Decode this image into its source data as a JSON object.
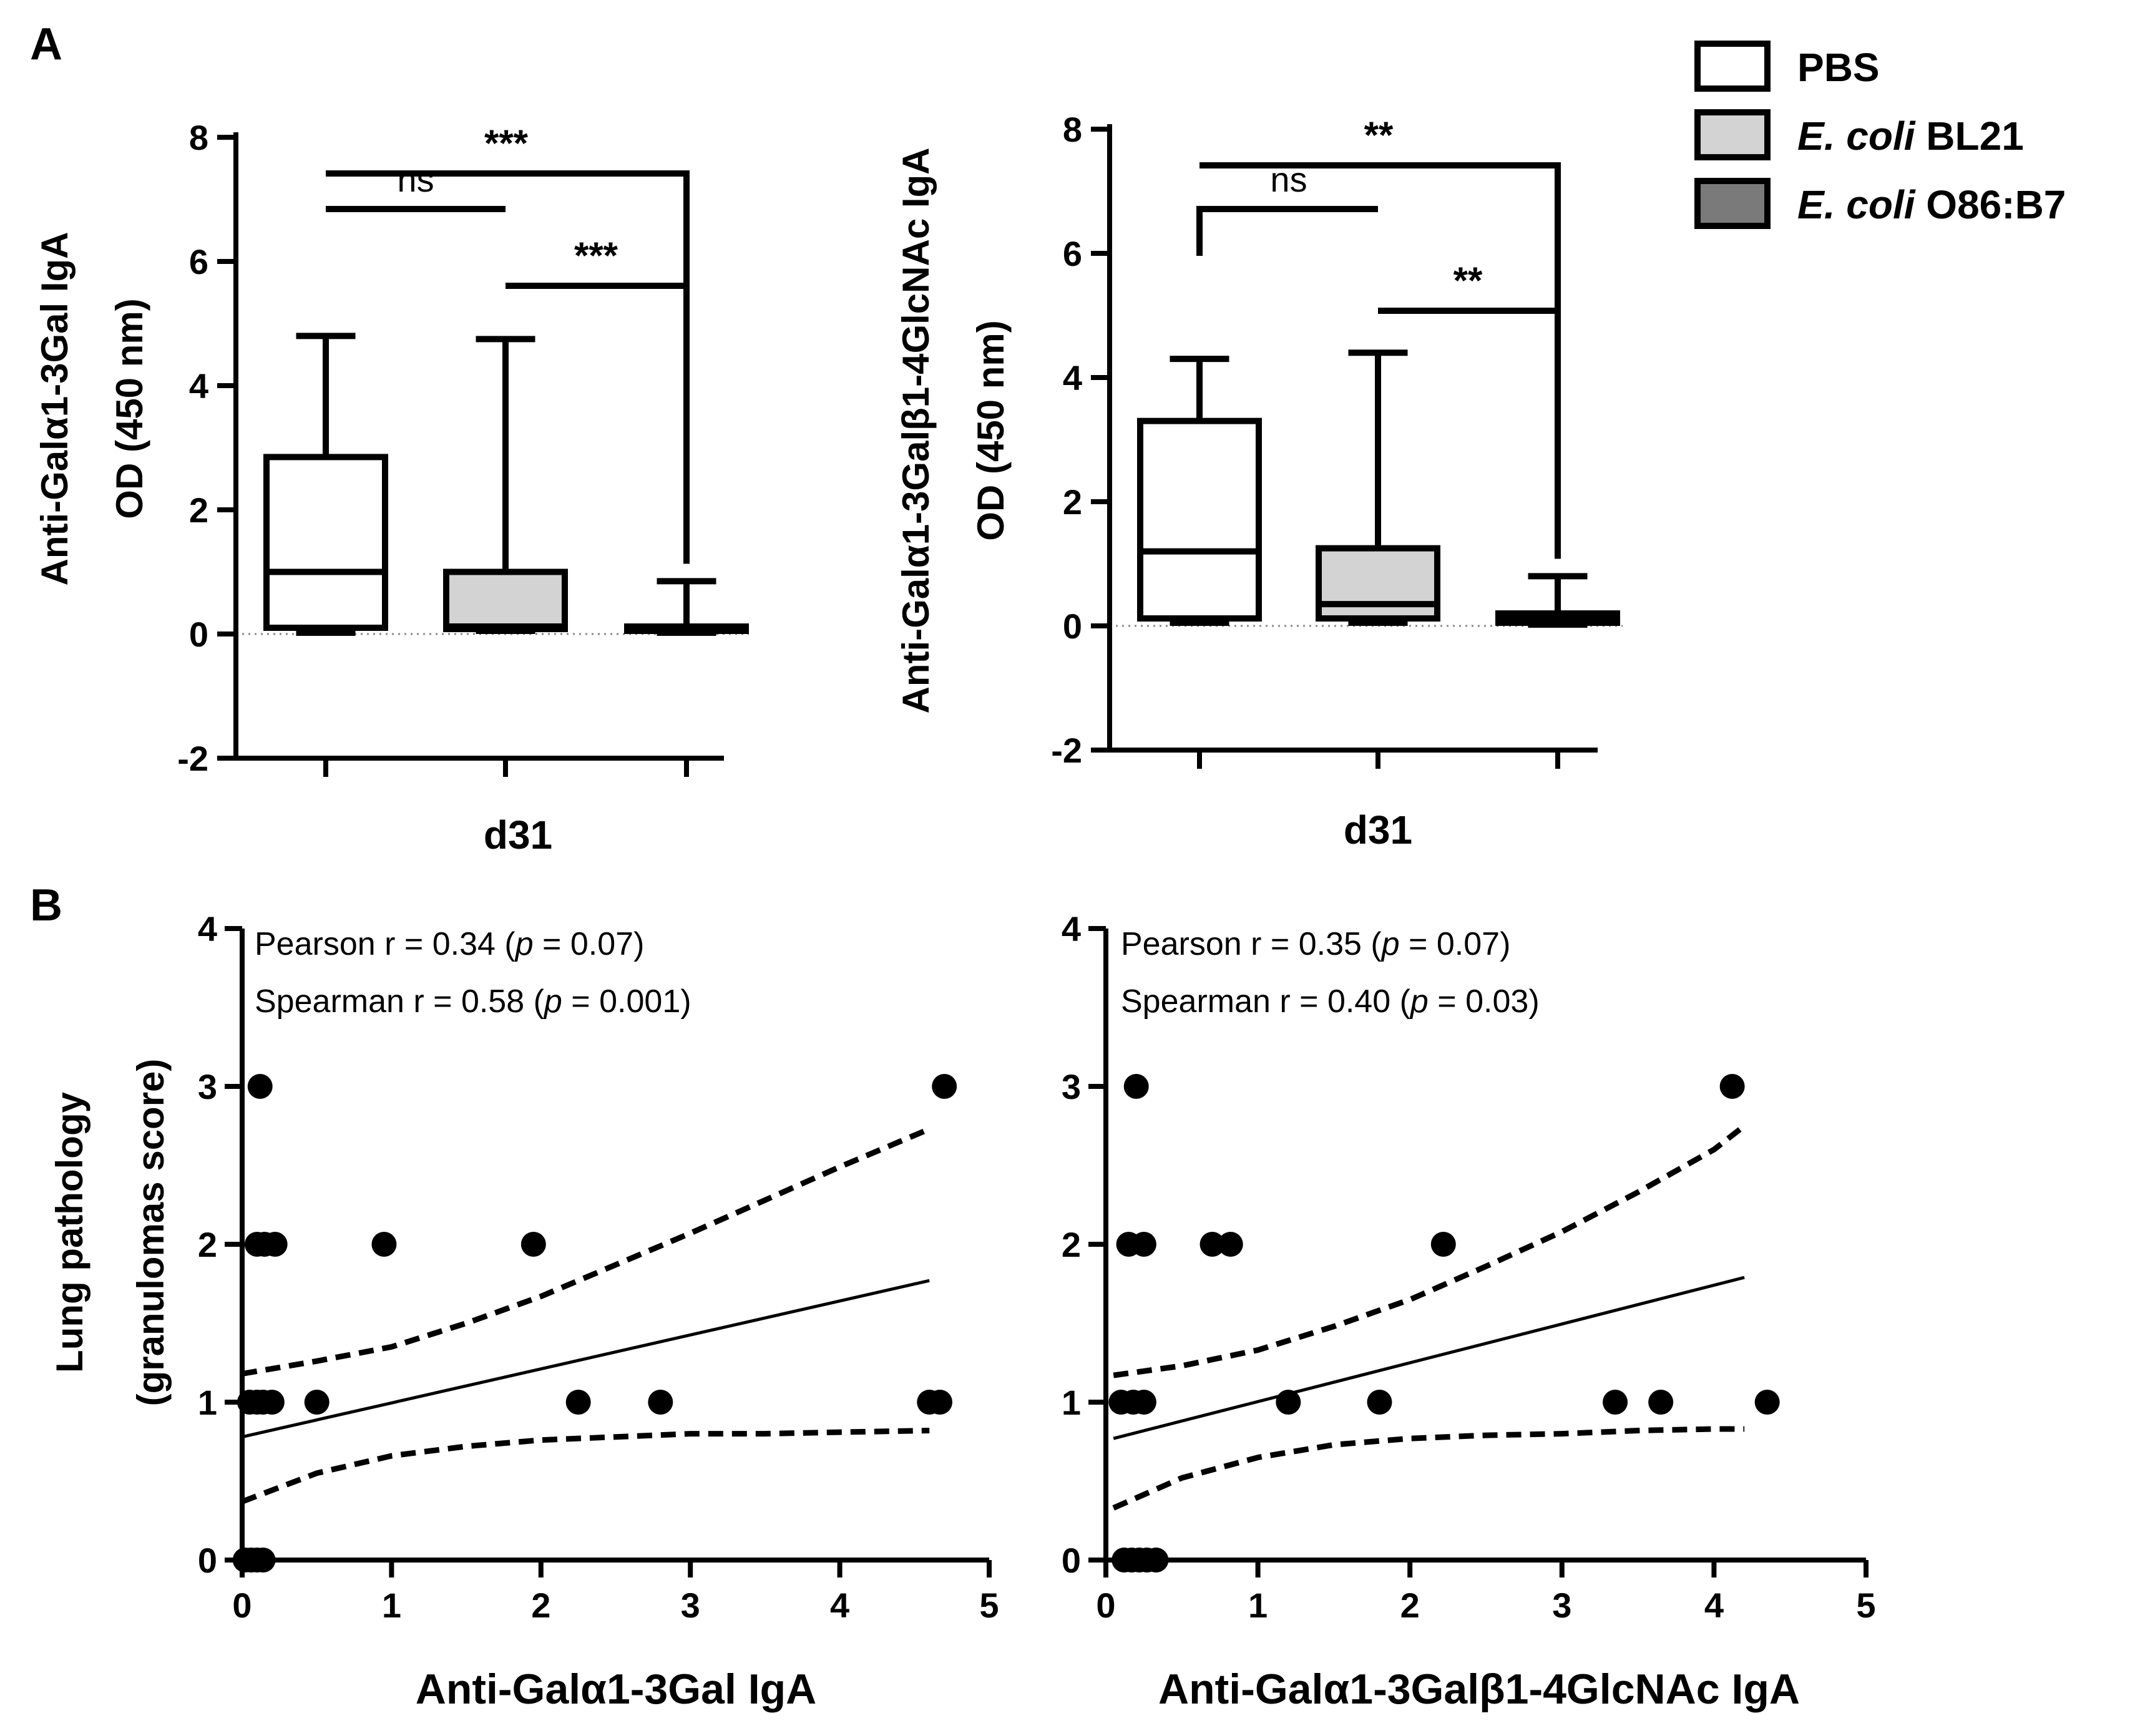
{
  "panel_labels": {
    "a": "A",
    "b": "B"
  },
  "legend": [
    {
      "label": "PBS",
      "label_italic": "",
      "label_rest": "",
      "color": "#ffffff"
    },
    {
      "label": "",
      "label_italic": "E. coli",
      "label_rest": " BL21",
      "color": "#d3d3d3"
    },
    {
      "label": "",
      "label_italic": "E. coli",
      "label_rest": " O86:B7",
      "color": "#7a7a7a"
    }
  ],
  "chart_data": [
    {
      "id": "A1",
      "type": "box",
      "title": "",
      "ylabel_line1": "Anti-Galα1-3Gal IgA",
      "ylabel_line2": "OD (450 nm)",
      "xlabel": "d31",
      "ylim": [
        -2,
        8
      ],
      "yticks": [
        "-2",
        "0",
        "2",
        "4",
        "6",
        "8"
      ],
      "groups": [
        {
          "name": "PBS",
          "color": "#ffffff",
          "min": 0.02,
          "q1": 0.1,
          "median": 1.0,
          "q3": 2.85,
          "max": 4.8
        },
        {
          "name": "E. coli BL21",
          "color": "#d3d3d3",
          "min": 0.05,
          "q1": 0.08,
          "median": 0.12,
          "q3": 1.0,
          "max": 4.75
        },
        {
          "name": "E. coli O86:B7",
          "color": "#7a7a7a",
          "min": 0.02,
          "q1": 0.05,
          "median": 0.08,
          "q3": 0.12,
          "max": 0.85
        }
      ],
      "comparisons": [
        {
          "from": 0,
          "to": 1,
          "label": "ns"
        },
        {
          "from": 1,
          "to": 2,
          "label": "***"
        },
        {
          "from": 0,
          "to": 2,
          "label": "***"
        }
      ]
    },
    {
      "id": "A2",
      "type": "box",
      "title": "",
      "ylabel_line1": "Anti-Galα1-3Galβ1-4GlcNAc IgA",
      "ylabel_line2": "OD (450 nm)",
      "xlabel": "d31",
      "ylim": [
        -2,
        8
      ],
      "yticks": [
        "-2",
        "0",
        "2",
        "4",
        "6",
        "8"
      ],
      "groups": [
        {
          "name": "PBS",
          "color": "#ffffff",
          "min": 0.05,
          "q1": 0.12,
          "median": 1.2,
          "q3": 3.3,
          "max": 4.3
        },
        {
          "name": "E. coli BL21",
          "color": "#d3d3d3",
          "min": 0.05,
          "q1": 0.12,
          "median": 0.35,
          "q3": 1.25,
          "max": 4.4
        },
        {
          "name": "E. coli O86:B7",
          "color": "#7a7a7a",
          "min": 0.02,
          "q1": 0.05,
          "median": 0.1,
          "q3": 0.2,
          "max": 0.8
        }
      ],
      "comparisons": [
        {
          "from": 0,
          "to": 1,
          "label": "ns"
        },
        {
          "from": 1,
          "to": 2,
          "label": "**"
        },
        {
          "from": 0,
          "to": 2,
          "label": "**"
        }
      ]
    },
    {
      "id": "B1",
      "type": "scatter",
      "title": "",
      "ylabel_line1": "Lung pathology",
      "ylabel_line2": "(granulomas score)",
      "xlabel": "Anti-Galα1-3Gal IgA",
      "xlim": [
        0,
        5
      ],
      "ylim": [
        0,
        4
      ],
      "xticks": [
        "0",
        "1",
        "2",
        "3",
        "4",
        "5"
      ],
      "yticks": [
        "0",
        "1",
        "2",
        "3",
        "4"
      ],
      "stats": {
        "pearson_prefix": "Pearson r = 0.34 (",
        "pearson_p": "p",
        "pearson_suffix": " = 0.07)",
        "spearman_prefix": "Spearman r = 0.58 (",
        "spearman_p": "p",
        "spearman_suffix": " = 0.001)"
      },
      "points": [
        [
          0.02,
          0
        ],
        [
          0.06,
          0
        ],
        [
          0.1,
          0
        ],
        [
          0.14,
          0
        ],
        [
          0.05,
          1
        ],
        [
          0.1,
          1
        ],
        [
          0.14,
          1
        ],
        [
          0.2,
          1
        ],
        [
          0.5,
          1
        ],
        [
          2.25,
          1
        ],
        [
          2.8,
          1
        ],
        [
          4.6,
          1
        ],
        [
          4.67,
          1
        ],
        [
          0.1,
          2
        ],
        [
          0.15,
          2
        ],
        [
          0.22,
          2
        ],
        [
          0.95,
          2
        ],
        [
          1.95,
          2
        ],
        [
          0.12,
          3
        ],
        [
          4.7,
          3
        ]
      ],
      "regression": {
        "x0": 0,
        "y0": 0.78,
        "x1": 4.6,
        "y1": 1.77
      },
      "ci_upper": [
        [
          0,
          1.18
        ],
        [
          0.5,
          1.26
        ],
        [
          1,
          1.35
        ],
        [
          1.5,
          1.5
        ],
        [
          2,
          1.67
        ],
        [
          2.5,
          1.87
        ],
        [
          3,
          2.07
        ],
        [
          3.5,
          2.28
        ],
        [
          4,
          2.49
        ],
        [
          4.6,
          2.73
        ]
      ],
      "ci_lower": [
        [
          0,
          0.37
        ],
        [
          0.5,
          0.55
        ],
        [
          1,
          0.66
        ],
        [
          1.5,
          0.72
        ],
        [
          2,
          0.76
        ],
        [
          2.5,
          0.78
        ],
        [
          3,
          0.8
        ],
        [
          3.5,
          0.8
        ],
        [
          4,
          0.81
        ],
        [
          4.6,
          0.82
        ]
      ]
    },
    {
      "id": "B2",
      "type": "scatter",
      "title": "",
      "ylabel_line1": "",
      "ylabel_line2": "",
      "xlabel": "Anti-Galα1-3Galβ1-4GlcNAc IgA",
      "xlim": [
        0,
        5
      ],
      "ylim": [
        0,
        4
      ],
      "xticks": [
        "0",
        "1",
        "2",
        "3",
        "4",
        "5"
      ],
      "yticks": [
        "0",
        "1",
        "2",
        "3",
        "4"
      ],
      "stats": {
        "pearson_prefix": "Pearson r = 0.35 (",
        "pearson_p": "p",
        "pearson_suffix": " = 0.07)",
        "spearman_prefix": "Spearman r = 0.40 (",
        "spearman_p": "p",
        "spearman_suffix": " = 0.03)"
      },
      "points": [
        [
          0.12,
          0
        ],
        [
          0.17,
          0
        ],
        [
          0.22,
          0
        ],
        [
          0.27,
          0
        ],
        [
          0.33,
          0
        ],
        [
          0.1,
          1
        ],
        [
          0.18,
          1
        ],
        [
          0.25,
          1
        ],
        [
          1.2,
          1
        ],
        [
          1.8,
          1
        ],
        [
          3.35,
          1
        ],
        [
          3.65,
          1
        ],
        [
          4.35,
          1
        ],
        [
          0.15,
          2
        ],
        [
          0.25,
          2
        ],
        [
          0.7,
          2
        ],
        [
          0.82,
          2
        ],
        [
          2.22,
          2
        ],
        [
          0.2,
          3
        ],
        [
          4.12,
          3
        ]
      ],
      "regression": {
        "x0": 0.05,
        "y0": 0.77,
        "x1": 4.2,
        "y1": 1.79
      },
      "ci_upper": [
        [
          0.05,
          1.17
        ],
        [
          0.5,
          1.23
        ],
        [
          1,
          1.33
        ],
        [
          1.5,
          1.48
        ],
        [
          2,
          1.65
        ],
        [
          2.5,
          1.86
        ],
        [
          3,
          2.08
        ],
        [
          3.5,
          2.33
        ],
        [
          4,
          2.6
        ],
        [
          4.2,
          2.75
        ]
      ],
      "ci_lower": [
        [
          0.05,
          0.33
        ],
        [
          0.5,
          0.52
        ],
        [
          1,
          0.65
        ],
        [
          1.5,
          0.73
        ],
        [
          2,
          0.77
        ],
        [
          2.5,
          0.79
        ],
        [
          3,
          0.8
        ],
        [
          3.5,
          0.82
        ],
        [
          4,
          0.83
        ],
        [
          4.2,
          0.83
        ]
      ]
    }
  ]
}
